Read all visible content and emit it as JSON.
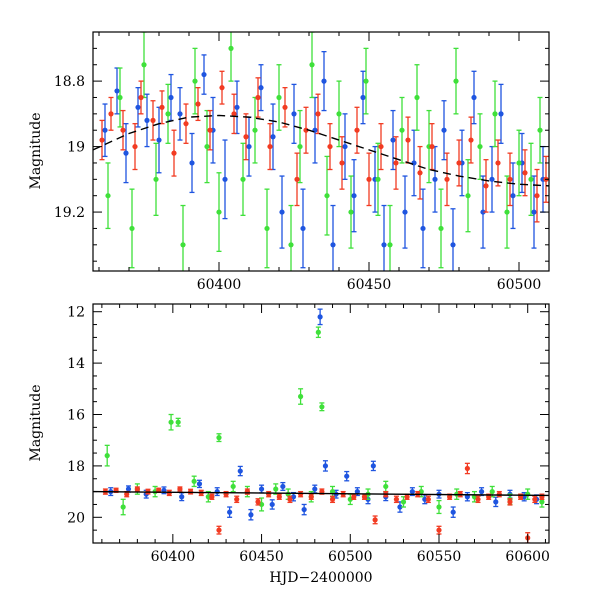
{
  "colors": {
    "blue": "#1f55e0",
    "green": "#3fe03a",
    "red": "#f23b22",
    "trend": "#000000"
  },
  "chart_data": [
    {
      "type": "scatter",
      "title": "",
      "xlabel": "",
      "ylabel": "Magnitude",
      "xlim": [
        60358,
        60510
      ],
      "ylim": [
        19.38,
        18.65
      ],
      "y_inverted": true,
      "x_ticks": [
        60400,
        60450,
        60500
      ],
      "x_tick_labels": [
        "60400",
        "60450",
        "60500"
      ],
      "y_ticks": [
        18.8,
        19.0,
        19.2
      ],
      "y_tick_labels": [
        "18.8",
        "19",
        "19.2"
      ],
      "trend_line": {
        "style": "dashed",
        "x": [
          60358,
          60370,
          60380,
          60390,
          60400,
          60410,
          60420,
          60430,
          60440,
          60450,
          60460,
          60470,
          60480,
          60490,
          60500,
          60510
        ],
        "y": [
          19.01,
          18.96,
          18.93,
          18.91,
          18.905,
          18.91,
          18.925,
          18.95,
          18.98,
          19.01,
          19.04,
          19.07,
          19.09,
          19.105,
          19.115,
          19.12
        ]
      },
      "series": [
        {
          "color": "blue",
          "x": [
            60362,
            60366,
            60369,
            60373,
            60376,
            60380,
            60384,
            60387,
            60391,
            60395,
            60398,
            60402,
            60406,
            60410,
            60414,
            60418,
            60421,
            60425,
            60428,
            60432,
            60435,
            60438,
            60442,
            60445,
            60448,
            60452,
            60455,
            60458,
            60462,
            60465,
            60468,
            60472,
            60475,
            60478,
            60481,
            60485,
            60488,
            60491,
            60494,
            60498,
            60501,
            60505,
            60508
          ],
          "y": [
            18.95,
            18.83,
            19.02,
            18.88,
            18.92,
            18.98,
            18.85,
            18.9,
            19.05,
            18.78,
            18.95,
            19.1,
            18.88,
            19.0,
            18.82,
            18.97,
            19.2,
            18.9,
            19.25,
            18.95,
            18.8,
            19.3,
            19.0,
            19.15,
            18.85,
            19.1,
            19.3,
            18.98,
            19.2,
            19.05,
            19.25,
            19.1,
            18.95,
            19.3,
            19.05,
            18.85,
            19.2,
            19.1,
            18.9,
            19.15,
            19.05,
            19.2,
            19.1
          ],
          "err": [
            0.08,
            0.07,
            0.09,
            0.06,
            0.08,
            0.1,
            0.07,
            0.08,
            0.09,
            0.06,
            0.1,
            0.12,
            0.08,
            0.09,
            0.07,
            0.1,
            0.11,
            0.09,
            0.12,
            0.1,
            0.09,
            0.12,
            0.1,
            0.11,
            0.08,
            0.1,
            0.12,
            0.09,
            0.11,
            0.1,
            0.12,
            0.1,
            0.09,
            0.11,
            0.1,
            0.08,
            0.11,
            0.1,
            0.09,
            0.1,
            0.09,
            0.11,
            0.1
          ]
        },
        {
          "color": "green",
          "x": [
            60363,
            60367,
            60371,
            60375,
            60379,
            60383,
            60388,
            60392,
            60396,
            60400,
            60404,
            60408,
            60412,
            60416,
            60420,
            60424,
            60427,
            60431,
            60436,
            60440,
            60444,
            60449,
            60453,
            60457,
            60461,
            60466,
            60470,
            60474,
            60479,
            60483,
            60487,
            60492,
            60496,
            60500,
            60504,
            60507
          ],
          "y": [
            19.15,
            18.85,
            19.25,
            18.75,
            19.1,
            18.9,
            19.3,
            18.8,
            19.0,
            19.2,
            18.7,
            19.1,
            18.95,
            19.25,
            18.85,
            19.3,
            19.0,
            18.75,
            19.15,
            18.9,
            19.2,
            18.8,
            19.1,
            19.3,
            18.95,
            18.85,
            19.0,
            19.25,
            18.8,
            19.15,
            19.0,
            18.9,
            19.2,
            19.05,
            19.1,
            18.95
          ],
          "err": [
            0.1,
            0.09,
            0.12,
            0.1,
            0.11,
            0.09,
            0.12,
            0.1,
            0.11,
            0.12,
            0.1,
            0.11,
            0.1,
            0.12,
            0.1,
            0.12,
            0.11,
            0.1,
            0.12,
            0.1,
            0.11,
            0.1,
            0.11,
            0.12,
            0.1,
            0.1,
            0.11,
            0.12,
            0.1,
            0.11,
            0.1,
            0.1,
            0.11,
            0.1,
            0.11,
            0.1
          ]
        },
        {
          "color": "red",
          "x": [
            60361,
            60364,
            60368,
            60372,
            60374,
            60378,
            60381,
            60385,
            60389,
            60393,
            60397,
            60401,
            60405,
            60409,
            60413,
            60417,
            60422,
            60426,
            60429,
            60433,
            60437,
            60441,
            60446,
            60450,
            60454,
            60459,
            60463,
            60467,
            60471,
            60476,
            60480,
            60484,
            60489,
            60493,
            60497,
            60502,
            60506,
            60509
          ],
          "y": [
            18.98,
            18.9,
            18.95,
            19.0,
            18.85,
            18.92,
            18.88,
            19.02,
            18.93,
            18.87,
            18.95,
            18.82,
            18.9,
            18.97,
            18.85,
            19.0,
            18.88,
            19.1,
            18.95,
            18.9,
            19.0,
            19.05,
            18.95,
            19.1,
            19.0,
            19.05,
            18.98,
            19.08,
            19.0,
            19.1,
            19.05,
            18.98,
            19.12,
            19.05,
            19.1,
            19.08,
            19.15,
            19.1
          ],
          "err": [
            0.06,
            0.05,
            0.06,
            0.07,
            0.05,
            0.06,
            0.05,
            0.07,
            0.06,
            0.05,
            0.06,
            0.05,
            0.06,
            0.07,
            0.06,
            0.07,
            0.06,
            0.08,
            0.07,
            0.06,
            0.07,
            0.08,
            0.07,
            0.08,
            0.07,
            0.08,
            0.07,
            0.08,
            0.07,
            0.08,
            0.07,
            0.07,
            0.08,
            0.07,
            0.08,
            0.07,
            0.08,
            0.07
          ]
        }
      ]
    },
    {
      "type": "scatter",
      "title": "",
      "xlabel": "HJD−2400000",
      "ylabel": "Magnitude",
      "xlim": [
        60355,
        60612
      ],
      "ylim": [
        21.0,
        11.7
      ],
      "y_inverted": true,
      "x_ticks": [
        60400,
        60450,
        60500,
        60550,
        60600
      ],
      "x_tick_labels": [
        "60400",
        "60450",
        "60500",
        "60550",
        "60600"
      ],
      "y_ticks": [
        12,
        14,
        16,
        18,
        20
      ],
      "y_tick_labels": [
        "12",
        "14",
        "16",
        "18",
        "20"
      ],
      "trend_line": {
        "style": "solid",
        "x": [
          60355,
          60612
        ],
        "y": [
          19.0,
          19.15
        ]
      },
      "series": [
        {
          "color": "blue",
          "x": [
            60365,
            60375,
            60385,
            60395,
            60405,
            60415,
            60425,
            60432,
            60438,
            60444,
            60450,
            60456,
            60462,
            60468,
            60474,
            60480,
            60483,
            60486,
            60492,
            60498,
            60504,
            60510,
            60513,
            60520,
            60528,
            60535,
            60542,
            60550,
            60558,
            60566,
            60574,
            60582,
            60590,
            60598,
            60605
          ],
          "y": [
            19.0,
            18.9,
            19.1,
            18.95,
            19.2,
            18.7,
            19.0,
            19.8,
            18.2,
            19.9,
            18.9,
            19.5,
            18.8,
            19.2,
            19.7,
            18.9,
            12.2,
            18.0,
            19.1,
            18.4,
            19.0,
            19.3,
            18.0,
            19.2,
            19.6,
            19.0,
            19.3,
            19.1,
            19.8,
            19.2,
            19.0,
            19.4,
            19.1,
            19.2,
            19.3
          ],
          "err": [
            0.15,
            0.12,
            0.15,
            0.13,
            0.15,
            0.14,
            0.15,
            0.2,
            0.18,
            0.2,
            0.15,
            0.18,
            0.15,
            0.16,
            0.2,
            0.15,
            0.3,
            0.2,
            0.15,
            0.18,
            0.15,
            0.17,
            0.18,
            0.15,
            0.2,
            0.15,
            0.17,
            0.15,
            0.2,
            0.16,
            0.15,
            0.18,
            0.15,
            0.16,
            0.17
          ]
        },
        {
          "color": "green",
          "x": [
            60363,
            60372,
            60380,
            60390,
            60399,
            60403,
            60412,
            60420,
            60426,
            60434,
            60442,
            60450,
            60458,
            60465,
            60472,
            60478,
            60482,
            60484,
            60490,
            60500,
            60510,
            60520,
            60530,
            60540,
            60550,
            60560,
            60570,
            60580,
            60590,
            60600,
            60608
          ],
          "y": [
            17.6,
            19.6,
            18.9,
            19.0,
            16.3,
            16.3,
            18.6,
            19.2,
            16.9,
            18.8,
            19.0,
            19.5,
            18.9,
            19.1,
            15.3,
            19.2,
            12.8,
            15.7,
            19.0,
            19.3,
            19.1,
            18.8,
            19.4,
            19.0,
            19.6,
            19.1,
            19.2,
            19.0,
            19.3,
            19.1,
            19.4
          ],
          "err": [
            0.4,
            0.3,
            0.2,
            0.2,
            0.3,
            0.15,
            0.2,
            0.2,
            0.15,
            0.2,
            0.2,
            0.25,
            0.2,
            0.2,
            0.3,
            0.2,
            0.2,
            0.15,
            0.2,
            0.2,
            0.2,
            0.2,
            0.2,
            0.2,
            0.25,
            0.2,
            0.2,
            0.2,
            0.2,
            0.2,
            0.2
          ]
        },
        {
          "color": "red",
          "x": [
            60362,
            60368,
            60374,
            60380,
            60386,
            60392,
            60398,
            60404,
            60410,
            60416,
            60422,
            60426,
            60430,
            60436,
            60442,
            60448,
            60454,
            60460,
            60466,
            60472,
            60478,
            60484,
            60490,
            60496,
            60502,
            60508,
            60514,
            60520,
            60526,
            60532,
            60538,
            60544,
            60550,
            60556,
            60562,
            60566,
            60572,
            60578,
            60584,
            60590,
            60596,
            60600,
            60604,
            60608
          ],
          "y": [
            19.0,
            18.95,
            19.1,
            18.9,
            19.0,
            18.95,
            19.05,
            18.9,
            19.0,
            19.05,
            19.2,
            20.5,
            19.1,
            19.3,
            19.0,
            19.4,
            19.1,
            19.2,
            19.3,
            19.1,
            19.2,
            19.0,
            19.3,
            19.1,
            19.2,
            19.2,
            20.1,
            19.1,
            19.3,
            19.2,
            19.1,
            19.3,
            20.5,
            19.2,
            19.1,
            18.1,
            19.3,
            19.2,
            19.1,
            19.4,
            19.2,
            20.8,
            19.3,
            19.2
          ],
          "err": [
            0.1,
            0.08,
            0.1,
            0.08,
            0.09,
            0.08,
            0.1,
            0.08,
            0.09,
            0.1,
            0.1,
            0.15,
            0.1,
            0.12,
            0.1,
            0.12,
            0.1,
            0.1,
            0.12,
            0.1,
            0.1,
            0.1,
            0.12,
            0.1,
            0.1,
            0.1,
            0.15,
            0.1,
            0.12,
            0.1,
            0.1,
            0.12,
            0.15,
            0.1,
            0.1,
            0.2,
            0.12,
            0.1,
            0.1,
            0.12,
            0.1,
            0.2,
            0.12,
            0.1
          ]
        }
      ]
    }
  ]
}
